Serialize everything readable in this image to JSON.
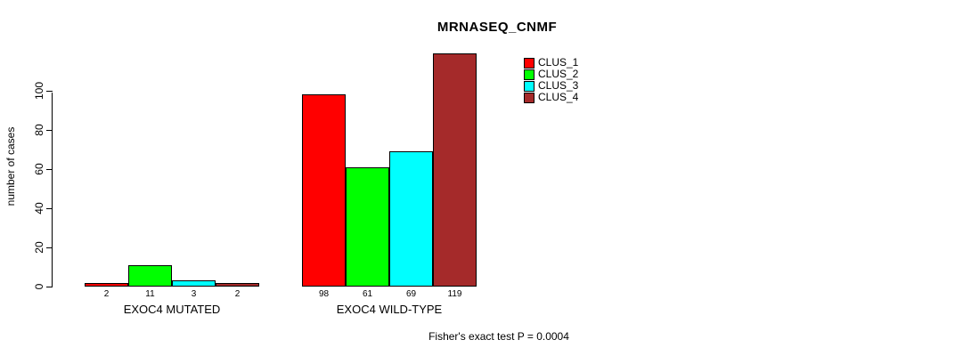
{
  "title": "MRNASEQ_CNMF",
  "footer_annotation": "Fisher's exact test P = 0.0004",
  "chart_data": {
    "type": "bar",
    "title": "MRNASEQ_CNMF",
    "xlabel": "",
    "ylabel": "number of cases",
    "groups": [
      "EXOC4 MUTATED",
      "EXOC4 WILD-TYPE"
    ],
    "series": [
      {
        "name": "CLUS_1",
        "color": "#ff0000",
        "values": [
          2,
          98
        ]
      },
      {
        "name": "CLUS_2",
        "color": "#00ff00",
        "values": [
          11,
          61
        ]
      },
      {
        "name": "CLUS_3",
        "color": "#00ffff",
        "values": [
          3,
          69
        ]
      },
      {
        "name": "CLUS_4",
        "color": "#a52a2a",
        "values": [
          2,
          119
        ]
      }
    ],
    "bar_value_labels": [
      [
        "2",
        "11",
        "3",
        "2"
      ],
      [
        "98",
        "61",
        "69",
        "119"
      ]
    ],
    "yticks": [
      0,
      20,
      40,
      60,
      80,
      100
    ],
    "ylim": [
      0,
      119
    ],
    "grid": false,
    "legend_position": "top-right",
    "annotation": "Fisher's exact test P = 0.0004"
  }
}
